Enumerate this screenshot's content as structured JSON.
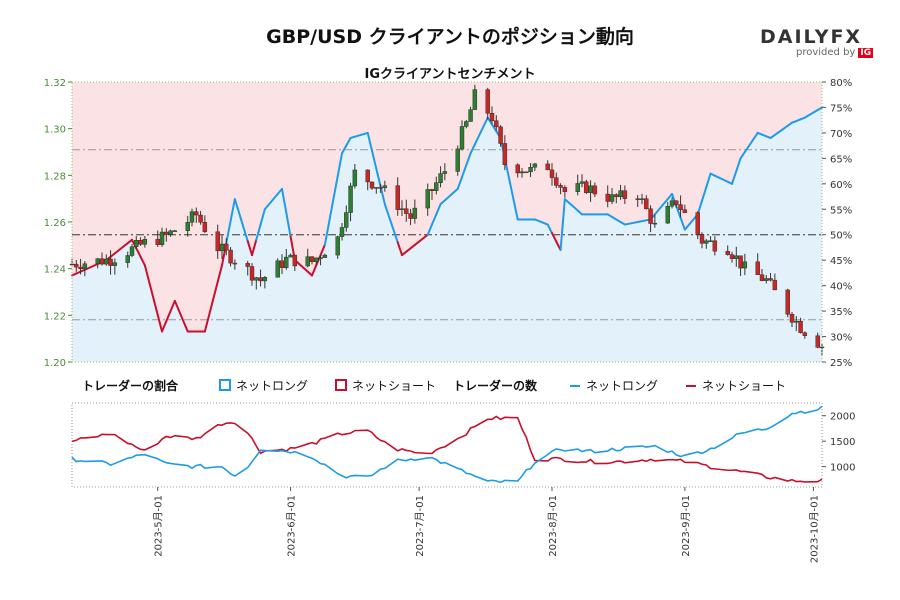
{
  "header": {
    "title": "GBP/USD クライアントのポジション動向",
    "subtitle": "IGクライアントセンチメント",
    "brand": "DAILYFX",
    "provided_by": "provided by",
    "ig_logo": "IG"
  },
  "colors": {
    "long": "#1e9be8",
    "short": "#c8102e",
    "long_fill": "#e3f1fb",
    "short_fill": "#fbe3e5",
    "candle_up": "#2e7d32",
    "candle_down": "#c62828"
  },
  "legend": {
    "ratio_title": "トレーダーの割合",
    "ratio_long": "ネットロング",
    "ratio_short": "ネットショート",
    "count_title": "トレーダーの数",
    "count_long": "ネットロング",
    "count_short": "ネットショート"
  },
  "chart_data": [
    {
      "type": "candlestick",
      "title": "IGクライアントセンチメント",
      "ylim_price": [
        1.2,
        1.32
      ],
      "price_ticks": [
        "1.20",
        "1.22",
        "1.24",
        "1.26",
        "1.28",
        "1.30",
        "1.32"
      ],
      "ylim_pct": [
        25,
        80
      ],
      "pct_ticks": [
        "25%",
        "30%",
        "35%",
        "40%",
        "45%",
        "50%",
        "55%",
        "60%",
        "65%",
        "70%",
        "75%",
        "80%"
      ],
      "reference_lines_pct": [
        33.3,
        50,
        66.7
      ],
      "x_start": "2023-04-11",
      "x_end": "2023-10-03",
      "x_ticks": [
        "2023-5月-01",
        "2023-6月-01",
        "2023-7月-01",
        "2023-8月-01",
        "2023-9月-01",
        "2023-10月-01"
      ],
      "price_close_keypoints": [
        [
          "2023-04-11",
          1.242
        ],
        [
          "2023-04-20",
          1.244
        ],
        [
          "2023-04-28",
          1.251
        ],
        [
          "2023-05-03",
          1.254
        ],
        [
          "2023-05-10",
          1.263
        ],
        [
          "2023-05-15",
          1.249
        ],
        [
          "2023-05-19",
          1.244
        ],
        [
          "2023-05-25",
          1.235
        ],
        [
          "2023-05-31",
          1.244
        ],
        [
          "2023-06-06",
          1.243
        ],
        [
          "2023-06-12",
          1.253
        ],
        [
          "2023-06-16",
          1.281
        ],
        [
          "2023-06-22",
          1.275
        ],
        [
          "2023-06-29",
          1.262
        ],
        [
          "2023-07-03",
          1.271
        ],
        [
          "2023-07-07",
          1.282
        ],
        [
          "2023-07-12",
          1.302
        ],
        [
          "2023-07-14",
          1.314
        ],
        [
          "2023-07-18",
          1.305
        ],
        [
          "2023-07-21",
          1.285
        ],
        [
          "2023-07-27",
          1.282
        ],
        [
          "2023-07-31",
          1.284
        ],
        [
          "2023-08-04",
          1.273
        ],
        [
          "2023-08-09",
          1.275
        ],
        [
          "2023-08-15",
          1.27
        ],
        [
          "2023-08-21",
          1.272
        ],
        [
          "2023-08-25",
          1.258
        ],
        [
          "2023-08-30",
          1.269
        ],
        [
          "2023-09-05",
          1.252
        ],
        [
          "2023-09-11",
          1.249
        ],
        [
          "2023-09-15",
          1.24
        ],
        [
          "2023-09-20",
          1.235
        ],
        [
          "2023-09-25",
          1.222
        ],
        [
          "2023-09-28",
          1.215
        ],
        [
          "2023-10-03",
          1.207
        ]
      ],
      "net_long_pct_keypoints": [
        [
          "2023-04-11",
          42
        ],
        [
          "2023-04-19",
          45
        ],
        [
          "2023-04-25",
          49
        ],
        [
          "2023-04-28",
          44
        ],
        [
          "2023-05-02",
          31
        ],
        [
          "2023-05-05",
          37
        ],
        [
          "2023-05-08",
          31
        ],
        [
          "2023-05-12",
          31
        ],
        [
          "2023-05-16",
          44
        ],
        [
          "2023-05-19",
          57
        ],
        [
          "2023-05-23",
          46
        ],
        [
          "2023-05-26",
          55
        ],
        [
          "2023-05-30",
          59
        ],
        [
          "2023-06-02",
          45
        ],
        [
          "2023-06-06",
          42
        ],
        [
          "2023-06-09",
          48
        ],
        [
          "2023-06-13",
          66
        ],
        [
          "2023-06-15",
          69
        ],
        [
          "2023-06-19",
          70
        ],
        [
          "2023-06-23",
          56
        ],
        [
          "2023-06-27",
          46
        ],
        [
          "2023-07-03",
          50
        ],
        [
          "2023-07-06",
          56
        ],
        [
          "2023-07-10",
          59
        ],
        [
          "2023-07-13",
          66
        ],
        [
          "2023-07-17",
          73
        ],
        [
          "2023-07-20",
          69
        ],
        [
          "2023-07-24",
          53
        ],
        [
          "2023-07-28",
          53
        ],
        [
          "2023-07-31",
          52
        ],
        [
          "2023-08-03",
          47
        ],
        [
          "2023-08-04",
          57
        ],
        [
          "2023-08-08",
          54
        ],
        [
          "2023-08-14",
          54
        ],
        [
          "2023-08-18",
          52
        ],
        [
          "2023-08-24",
          53
        ],
        [
          "2023-08-29",
          58
        ],
        [
          "2023-09-01",
          51
        ],
        [
          "2023-09-04",
          54
        ],
        [
          "2023-09-07",
          62
        ],
        [
          "2023-09-12",
          60
        ],
        [
          "2023-09-14",
          65
        ],
        [
          "2023-09-18",
          70
        ],
        [
          "2023-09-21",
          69
        ],
        [
          "2023-09-26",
          72
        ],
        [
          "2023-09-29",
          73
        ],
        [
          "2023-10-03",
          75
        ]
      ]
    },
    {
      "type": "line",
      "title": "トレーダーの数",
      "ylim": [
        600,
        2250
      ],
      "y_ticks": [
        "1000",
        "1500",
        "2000"
      ],
      "net_long_count_keypoints": [
        [
          "2023-04-11",
          1150
        ],
        [
          "2023-04-20",
          1050
        ],
        [
          "2023-04-28",
          1250
        ],
        [
          "2023-05-03",
          1050
        ],
        [
          "2023-05-10",
          1000
        ],
        [
          "2023-05-16",
          1000
        ],
        [
          "2023-05-20",
          770
        ],
        [
          "2023-05-25",
          1350
        ],
        [
          "2023-06-01",
          1300
        ],
        [
          "2023-06-06",
          1200
        ],
        [
          "2023-06-13",
          820
        ],
        [
          "2023-06-19",
          780
        ],
        [
          "2023-06-25",
          1100
        ],
        [
          "2023-07-03",
          1200
        ],
        [
          "2023-07-10",
          950
        ],
        [
          "2023-07-17",
          700
        ],
        [
          "2023-07-24",
          700
        ],
        [
          "2023-07-28",
          1100
        ],
        [
          "2023-08-03",
          1350
        ],
        [
          "2023-08-10",
          1300
        ],
        [
          "2023-08-17",
          1350
        ],
        [
          "2023-08-25",
          1400
        ],
        [
          "2023-09-01",
          1200
        ],
        [
          "2023-09-07",
          1350
        ],
        [
          "2023-09-14",
          1650
        ],
        [
          "2023-09-20",
          1750
        ],
        [
          "2023-09-26",
          2050
        ],
        [
          "2023-10-03",
          2150
        ]
      ],
      "net_short_count_keypoints": [
        [
          "2023-04-11",
          1500
        ],
        [
          "2023-04-20",
          1650
        ],
        [
          "2023-04-28",
          1300
        ],
        [
          "2023-05-03",
          1600
        ],
        [
          "2023-05-10",
          1550
        ],
        [
          "2023-05-16",
          1850
        ],
        [
          "2023-05-20",
          1900
        ],
        [
          "2023-05-25",
          1300
        ],
        [
          "2023-06-01",
          1350
        ],
        [
          "2023-06-06",
          1450
        ],
        [
          "2023-06-13",
          1650
        ],
        [
          "2023-06-19",
          1700
        ],
        [
          "2023-06-25",
          1350
        ],
        [
          "2023-07-03",
          1250
        ],
        [
          "2023-07-10",
          1550
        ],
        [
          "2023-07-17",
          1950
        ],
        [
          "2023-07-24",
          1950
        ],
        [
          "2023-07-28",
          1150
        ],
        [
          "2023-08-03",
          1150
        ],
        [
          "2023-08-10",
          1100
        ],
        [
          "2023-08-17",
          1100
        ],
        [
          "2023-08-25",
          1150
        ],
        [
          "2023-09-01",
          1100
        ],
        [
          "2023-09-07",
          1000
        ],
        [
          "2023-09-14",
          900
        ],
        [
          "2023-09-20",
          800
        ],
        [
          "2023-09-26",
          720
        ],
        [
          "2023-10-03",
          720
        ]
      ]
    }
  ]
}
